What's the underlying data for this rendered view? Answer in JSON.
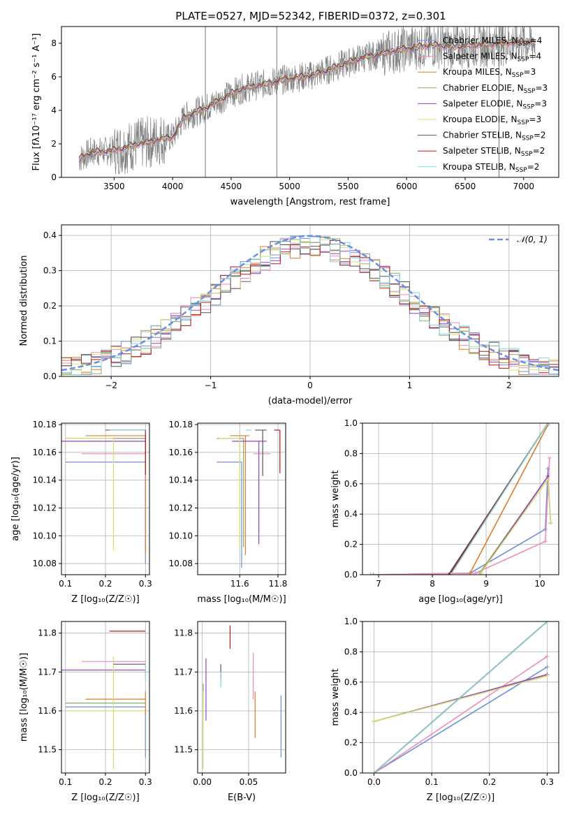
{
  "figure": {
    "title": "PLATE=0527, MJD=52342, FIBERID=0372, z=0.301"
  },
  "chart_data": [
    {
      "id": "spectrum",
      "type": "line",
      "xlabel": "wavelength [Angstrom, rest frame]",
      "ylabel": "Flux [fλ10⁻¹⁷ erg cm⁻² s⁻¹ A⁻¹]",
      "xlim": [
        3050,
        7300
      ],
      "ylim": [
        0,
        9
      ],
      "xticks": [
        3500,
        4000,
        4500,
        5000,
        5500,
        6000,
        6500,
        7000
      ],
      "yticks": [
        0,
        2,
        4,
        6,
        8
      ],
      "grid": false,
      "legend_position": "upper right",
      "data_range": [
        3200,
        7100
      ],
      "model_curve": {
        "x": [
          3200,
          3300,
          3400,
          3500,
          3600,
          3700,
          3800,
          3900,
          4000,
          4100,
          4200,
          4300,
          4400,
          4500,
          4600,
          4800,
          5000,
          5200,
          5400,
          5600,
          5800,
          6000,
          6200,
          6400,
          6600,
          6800,
          7000
        ],
        "y": [
          1.1,
          1.5,
          1.55,
          1.6,
          1.8,
          2.0,
          2.1,
          2.3,
          2.4,
          3.6,
          3.9,
          4.2,
          4.6,
          5.0,
          5.3,
          5.6,
          5.9,
          6.1,
          6.6,
          7.1,
          7.4,
          7.7,
          7.9,
          7.8,
          7.9,
          8.0,
          8.1
        ]
      },
      "series": [
        {
          "name": "Chabrier MILES, N_SSP=4",
          "color": "#6a8fdc"
        },
        {
          "name": "Salpeter MILES, N_SSP=4",
          "color": "#f08aba"
        },
        {
          "name": "Kroupa MILES, N_SSP=3",
          "color": "#e07c2a"
        },
        {
          "name": "Chabrier ELODIE, N_SSP=3",
          "color": "#8aa864"
        },
        {
          "name": "Salpeter ELODIE, N_SSP=3",
          "color": "#9b3fc0"
        },
        {
          "name": "Kroupa ELODIE, N_SSP=3",
          "color": "#d2e070"
        },
        {
          "name": "Chabrier STELIB, N_SSP=2",
          "color": "#555555"
        },
        {
          "name": "Salpeter STELIB, N_SSP=2",
          "color": "#b01818"
        },
        {
          "name": "Kroupa STELIB, N_SSP=2",
          "color": "#7fd3df"
        }
      ]
    },
    {
      "id": "residuals",
      "type": "histogram",
      "xlabel": "(data-model)/error",
      "ylabel": "Normed distribution",
      "xlim": [
        -2.5,
        2.5
      ],
      "ylim": [
        0,
        0.43
      ],
      "xticks": [
        -2,
        -1,
        0,
        1,
        2
      ],
      "yticks": [
        0.0,
        0.1,
        0.2,
        0.3,
        0.4
      ],
      "grid": true,
      "legend_position": "upper right",
      "reference": {
        "name": "𝒩(0, 1)",
        "color": "#6a8fdc",
        "mean": 0,
        "sigma": 1
      },
      "bins": {
        "start": -2.5,
        "width": 0.1,
        "count": 50
      }
    },
    {
      "id": "age_vs_Z",
      "type": "errorbar",
      "xlabel": "Z [log₁₀(Z/Z☉)]",
      "ylabel": "age  [log₁₀(age/yr)]",
      "xlim": [
        0.09,
        0.31
      ],
      "ylim": [
        10.072,
        10.181
      ],
      "xticks": [
        0.1,
        0.2,
        0.3
      ],
      "yticks": [
        10.08,
        10.1,
        10.12,
        10.14,
        10.16,
        10.18
      ],
      "grid": true,
      "points": [
        {
          "x": 0.3,
          "y": 10.153,
          "xerr": [
            0.2,
            0.0
          ],
          "yerr": [
            0.073,
            0.0
          ],
          "color": "#6a8fdc"
        },
        {
          "x": 0.3,
          "y": 10.159,
          "xerr": [
            0.16,
            0.0
          ],
          "yerr": [
            0.0,
            0.0
          ],
          "color": "#f08aba"
        },
        {
          "x": 0.3,
          "y": 10.172,
          "xerr": [
            0.15,
            0.0
          ],
          "yerr": [
            0.086,
            0.0
          ],
          "color": "#e07c2a"
        },
        {
          "x": 0.3,
          "y": 10.17,
          "xerr": [
            0.2,
            0.0
          ],
          "yerr": [
            0.0,
            0.0
          ],
          "color": "#8aa864"
        },
        {
          "x": 0.3,
          "y": 10.168,
          "xerr": [
            0.21,
            0.0
          ],
          "yerr": [
            0.0,
            0.0
          ],
          "color": "#9b3fc0"
        },
        {
          "x": 0.22,
          "y": 10.17,
          "xerr": [
            0.12,
            0.0
          ],
          "yerr": [
            0.081,
            0.0
          ],
          "color": "#d2e070"
        },
        {
          "x": 0.3,
          "y": 10.176,
          "xerr": [
            0.1,
            0.0
          ],
          "yerr": [
            0.0,
            0.0
          ],
          "color": "#555555"
        },
        {
          "x": 0.3,
          "y": 10.176,
          "xerr": [
            0.09,
            0.0
          ],
          "yerr": [
            0.032,
            0.0
          ],
          "color": "#b01818"
        },
        {
          "x": 0.3,
          "y": 10.176,
          "xerr": [
            0.09,
            0.0
          ],
          "yerr": [
            0.0,
            0.0
          ],
          "color": "#7fd3df"
        }
      ]
    },
    {
      "id": "age_vs_mass",
      "type": "errorbar",
      "xlabel": "mass [log₁₀(M/M☉)]",
      "ylabel": "",
      "xlim": [
        11.38,
        11.84
      ],
      "ylim": [
        10.072,
        10.181
      ],
      "xticks": [
        11.6,
        11.8
      ],
      "yticks": [
        10.08,
        10.1,
        10.12,
        10.14,
        10.16,
        10.18
      ],
      "grid": true,
      "points": [
        {
          "x": 11.61,
          "y": 10.153,
          "xerr": [
            0.13,
            0.0
          ],
          "yerr": [
            0.076,
            0.0
          ],
          "color": "#6a8fdc"
        },
        {
          "x": 11.72,
          "y": 10.159,
          "xerr": [
            0.05,
            0.04
          ],
          "yerr": [
            0.0,
            0.0
          ],
          "color": "#f08aba"
        },
        {
          "x": 11.63,
          "y": 10.172,
          "xerr": [
            0.08,
            0.02
          ],
          "yerr": [
            0.086,
            0.0
          ],
          "color": "#e07c2a"
        },
        {
          "x": 11.62,
          "y": 10.17,
          "xerr": [
            0.14,
            0.0
          ],
          "yerr": [
            0.078,
            0.0
          ],
          "color": "#8aa864"
        },
        {
          "x": 11.7,
          "y": 10.168,
          "xerr": [
            0.14,
            0.04
          ],
          "yerr": [
            0.074,
            0.0
          ],
          "color": "#9b3fc0"
        },
        {
          "x": 11.6,
          "y": 10.17,
          "xerr": [
            0.11,
            0.0
          ],
          "yerr": [
            0.081,
            0.0
          ],
          "color": "#d2e070"
        },
        {
          "x": 11.72,
          "y": 10.176,
          "xerr": [
            0.04,
            0.02
          ],
          "yerr": [
            0.033,
            0.0
          ],
          "color": "#555555"
        },
        {
          "x": 11.81,
          "y": 10.176,
          "xerr": [
            0.03,
            0.0
          ],
          "yerr": [
            0.031,
            0.0
          ],
          "color": "#b01818"
        },
        {
          "x": 11.66,
          "y": 10.176,
          "xerr": [
            0.03,
            0.0
          ],
          "yerr": [
            0.0,
            0.0
          ],
          "color": "#7fd3df"
        }
      ]
    },
    {
      "id": "weight_vs_age",
      "type": "line",
      "xlabel": "age  [log₁₀(age/yr)]",
      "ylabel": "mass weight",
      "xlim": [
        6.7,
        10.35
      ],
      "ylim": [
        0,
        1
      ],
      "xticks": [
        7,
        8,
        9,
        10
      ],
      "yticks": [
        0.0,
        0.2,
        0.4,
        0.6,
        0.8,
        1.0
      ],
      "grid": true,
      "series": [
        {
          "color": "#6a8fdc",
          "x": [
            6.9,
            8.7,
            10.1,
            10.15
          ],
          "y": [
            0.0,
            0.01,
            0.3,
            0.7
          ]
        },
        {
          "color": "#f08aba",
          "x": [
            6.85,
            8.8,
            10.1,
            10.18
          ],
          "y": [
            0.0,
            0.01,
            0.22,
            0.77
          ]
        },
        {
          "color": "#e07c2a",
          "x": [
            8.7,
            10.15
          ],
          "y": [
            0.01,
            0.99
          ]
        },
        {
          "color": "#8aa864",
          "x": [
            8.88,
            10.15
          ],
          "y": [
            0.01,
            0.65
          ]
        },
        {
          "color": "#9b3fc0",
          "x": [
            8.9,
            10.15,
            10.2
          ],
          "y": [
            0.01,
            0.65,
            0.34
          ]
        },
        {
          "color": "#d2e070",
          "x": [
            8.9,
            10.15,
            10.2
          ],
          "y": [
            0.01,
            0.63,
            0.34
          ]
        },
        {
          "color": "#555555",
          "x": [
            8.3,
            10.15
          ],
          "y": [
            0.0,
            1.0
          ]
        },
        {
          "color": "#b01818",
          "x": [
            8.32,
            10.15
          ],
          "y": [
            0.0,
            1.0
          ]
        },
        {
          "color": "#7fd3df",
          "x": [
            8.34,
            10.15
          ],
          "y": [
            0.0,
            1.0
          ]
        }
      ]
    },
    {
      "id": "mass_vs_Z",
      "type": "errorbar",
      "xlabel": "Z [log₁₀(Z/Z☉)]",
      "ylabel": "mass [log₁₀(M/M☉)]",
      "xlim": [
        0.09,
        0.31
      ],
      "ylim": [
        11.44,
        11.83
      ],
      "xticks": [
        0.1,
        0.2,
        0.3
      ],
      "yticks": [
        11.5,
        11.6,
        11.7,
        11.8
      ],
      "grid": true,
      "points": [
        {
          "x": 0.3,
          "y": 11.61,
          "xerr": [
            0.2,
            0.0
          ],
          "yerr": [
            0.13,
            0.0
          ],
          "color": "#6a8fdc"
        },
        {
          "x": 0.3,
          "y": 11.727,
          "xerr": [
            0.16,
            0.0
          ],
          "yerr": [
            0.0,
            0.0
          ],
          "color": "#f08aba"
        },
        {
          "x": 0.3,
          "y": 11.63,
          "xerr": [
            0.15,
            0.0
          ],
          "yerr": [
            0.04,
            0.02
          ],
          "color": "#e07c2a"
        },
        {
          "x": 0.3,
          "y": 11.62,
          "xerr": [
            0.2,
            0.0
          ],
          "yerr": [
            0.0,
            0.0
          ],
          "color": "#8aa864"
        },
        {
          "x": 0.3,
          "y": 11.705,
          "xerr": [
            0.21,
            0.0
          ],
          "yerr": [
            0.0,
            0.0
          ],
          "color": "#9b3fc0"
        },
        {
          "x": 0.22,
          "y": 11.6,
          "xerr": [
            0.12,
            0.08
          ],
          "yerr": [
            0.15,
            0.14
          ],
          "color": "#d2e070"
        },
        {
          "x": 0.3,
          "y": 11.72,
          "xerr": [
            0.08,
            0.0
          ],
          "yerr": [
            0.0,
            0.0
          ],
          "color": "#555555"
        },
        {
          "x": 0.3,
          "y": 11.805,
          "xerr": [
            0.09,
            0.0
          ],
          "yerr": [
            0.0,
            0.0
          ],
          "color": "#b01818"
        },
        {
          "x": 0.3,
          "y": 11.72,
          "xerr": [
            0.0,
            0.0
          ],
          "yerr": [
            0.04,
            0.0
          ],
          "color": "#7fd3df"
        }
      ]
    },
    {
      "id": "mass_vs_ebv",
      "type": "errorbar",
      "xlabel": "E(B-V)",
      "ylabel": "",
      "xlim": [
        -0.005,
        0.09
      ],
      "ylim": [
        11.44,
        11.83
      ],
      "xticks": [
        0.0,
        0.05
      ],
      "yticks": [
        11.5,
        11.6,
        11.7,
        11.8
      ],
      "grid": true,
      "points": [
        {
          "x": 0.085,
          "y": 11.56,
          "yerr": [
            0.08,
            0.08
          ],
          "color": "#6a8fdc"
        },
        {
          "x": 0.055,
          "y": 11.69,
          "yerr": [
            0.06,
            0.06
          ],
          "color": "#f08aba"
        },
        {
          "x": 0.057,
          "y": 11.59,
          "yerr": [
            0.06,
            0.06
          ],
          "color": "#e07c2a"
        },
        {
          "x": 0.001,
          "y": 11.64,
          "yerr": [
            0.03,
            0.03
          ],
          "color": "#8aa864"
        },
        {
          "x": 0.004,
          "y": 11.655,
          "yerr": [
            0.08,
            0.08
          ],
          "color": "#9b3fc0"
        },
        {
          "x": 0.001,
          "y": 11.55,
          "yerr": [
            0.1,
            0.1
          ],
          "color": "#d2e070"
        },
        {
          "x": 0.02,
          "y": 11.7,
          "yerr": [
            0.02,
            0.02
          ],
          "color": "#555555"
        },
        {
          "x": 0.03,
          "y": 11.79,
          "yerr": [
            0.03,
            0.03
          ],
          "color": "#b01818"
        },
        {
          "x": 0.02,
          "y": 11.68,
          "yerr": [
            0.02,
            0.02
          ],
          "color": "#7fd3df"
        }
      ]
    },
    {
      "id": "weight_vs_Z",
      "type": "line",
      "xlabel": "Z [log₁₀(Z/Z☉)]",
      "ylabel": "mass weight",
      "xlim": [
        -0.02,
        0.32
      ],
      "ylim": [
        0,
        1
      ],
      "xticks": [
        0.0,
        0.1,
        0.2,
        0.3
      ],
      "yticks": [
        0.0,
        0.2,
        0.4,
        0.6,
        0.8,
        1.0
      ],
      "grid": true,
      "series": [
        {
          "color": "#6a8fdc",
          "x": [
            0.0,
            0.3
          ],
          "y": [
            0.0,
            0.7
          ]
        },
        {
          "color": "#f08aba",
          "x": [
            0.0,
            0.3
          ],
          "y": [
            0.0,
            0.77
          ]
        },
        {
          "color": "#e07c2a",
          "x": [
            0.0,
            0.3
          ],
          "y": [
            0.0,
            1.0
          ]
        },
        {
          "color": "#8aa864",
          "x": [
            0.0,
            0.3
          ],
          "y": [
            0.34,
            0.65
          ]
        },
        {
          "color": "#9b3fc0",
          "x": [
            0.0,
            0.3
          ],
          "y": [
            0.34,
            0.65
          ]
        },
        {
          "color": "#d2e070",
          "x": [
            0.0,
            0.3
          ],
          "y": [
            0.34,
            0.64
          ]
        },
        {
          "color": "#555555",
          "x": [
            0.0,
            0.3
          ],
          "y": [
            0.0,
            1.0
          ]
        },
        {
          "color": "#b01818",
          "x": [
            0.0,
            0.3
          ],
          "y": [
            0.0,
            1.0
          ]
        },
        {
          "color": "#7fd3df",
          "x": [
            0.0,
            0.3
          ],
          "y": [
            0.0,
            1.0
          ]
        }
      ]
    }
  ]
}
